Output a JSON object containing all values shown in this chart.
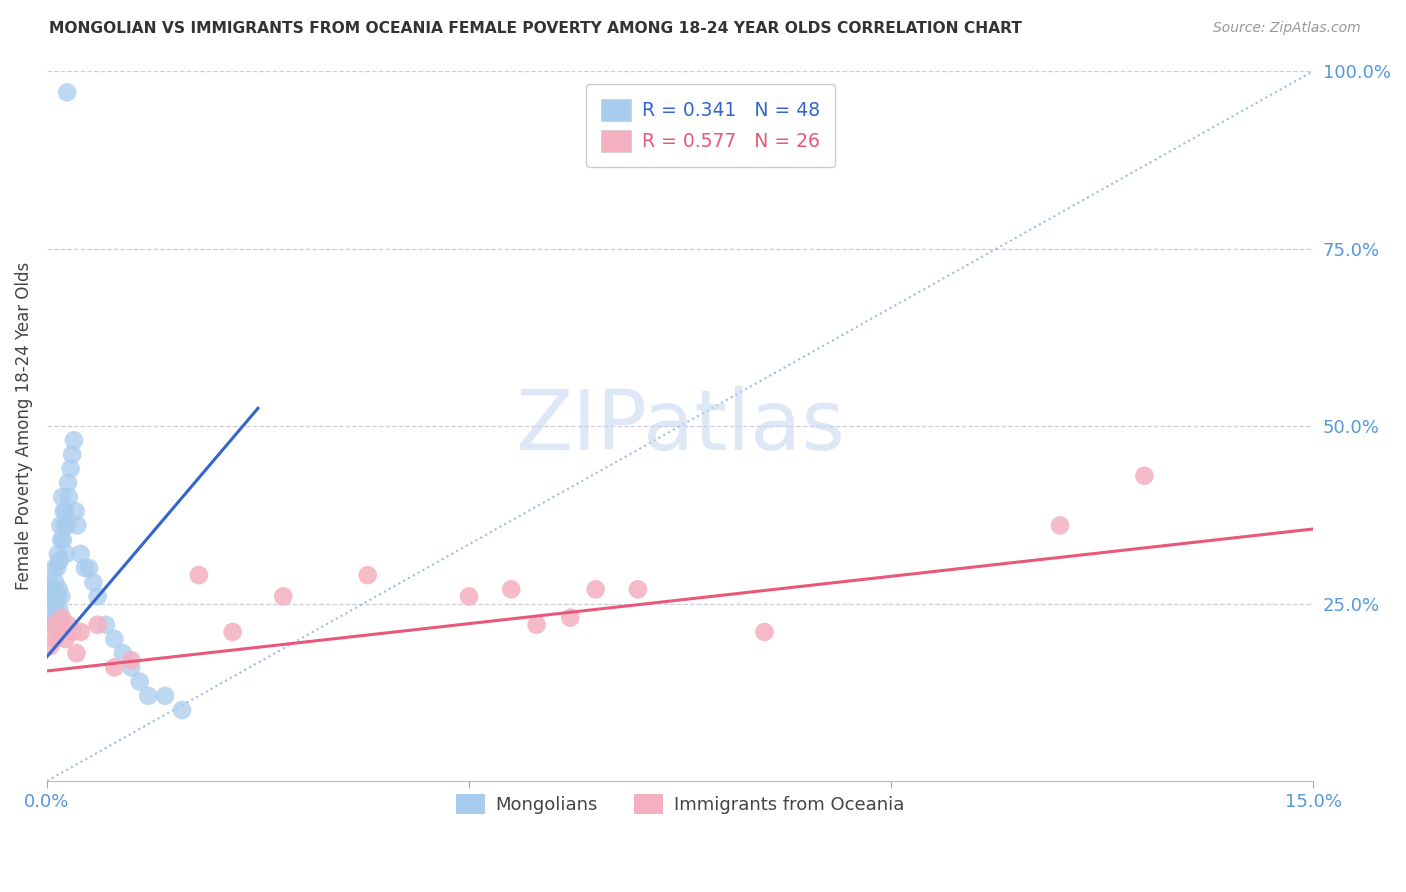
{
  "title": "MONGOLIAN VS IMMIGRANTS FROM OCEANIA FEMALE POVERTY AMONG 18-24 YEAR OLDS CORRELATION CHART",
  "source": "Source: ZipAtlas.com",
  "ylabel": "Female Poverty Among 18-24 Year Olds",
  "color_blue": "#A8CCEE",
  "color_pink": "#F4B0C0",
  "color_trendline_blue": "#3366CC",
  "color_trendline_pink": "#E85878",
  "color_axis": "#5599DD",
  "color_grid": "#CCCCDD",
  "color_title": "#333333",
  "watermark_color": "#C8D8F0",
  "xlim": [
    0.0,
    0.15
  ],
  "ylim": [
    0.0,
    1.0
  ],
  "legend_R1": "0.341",
  "legend_N1": "48",
  "legend_R2": "0.577",
  "legend_N2": "26",
  "legend_label1": "Mongolians",
  "legend_label2": "Immigrants from Oceania",
  "mongolian_x": [
    0.0003,
    0.0004,
    0.0005,
    0.0006,
    0.0007,
    0.0008,
    0.0009,
    0.001,
    0.001,
    0.0011,
    0.0012,
    0.0013,
    0.0013,
    0.0014,
    0.0014,
    0.0015,
    0.0015,
    0.0016,
    0.0017,
    0.0017,
    0.0018,
    0.0019,
    0.002,
    0.0021,
    0.0022,
    0.0023,
    0.0024,
    0.0025,
    0.0026,
    0.0028,
    0.003,
    0.0032,
    0.0034,
    0.0036,
    0.004,
    0.0045,
    0.005,
    0.0055,
    0.006,
    0.007,
    0.008,
    0.009,
    0.01,
    0.011,
    0.012,
    0.014,
    0.016,
    0.0024
  ],
  "mongolian_y": [
    0.28,
    0.22,
    0.24,
    0.27,
    0.26,
    0.25,
    0.3,
    0.28,
    0.22,
    0.24,
    0.3,
    0.32,
    0.26,
    0.27,
    0.22,
    0.31,
    0.24,
    0.36,
    0.34,
    0.26,
    0.4,
    0.34,
    0.38,
    0.36,
    0.38,
    0.32,
    0.36,
    0.42,
    0.4,
    0.44,
    0.46,
    0.48,
    0.38,
    0.36,
    0.32,
    0.3,
    0.3,
    0.28,
    0.26,
    0.22,
    0.2,
    0.18,
    0.16,
    0.14,
    0.12,
    0.12,
    0.1,
    0.97
  ],
  "oceania_x": [
    0.0004,
    0.0007,
    0.001,
    0.0014,
    0.0018,
    0.0022,
    0.0025,
    0.003,
    0.0035,
    0.004,
    0.006,
    0.008,
    0.01,
    0.018,
    0.022,
    0.028,
    0.038,
    0.05,
    0.055,
    0.058,
    0.062,
    0.065,
    0.07,
    0.085,
    0.12,
    0.13
  ],
  "oceania_y": [
    0.19,
    0.22,
    0.2,
    0.21,
    0.23,
    0.2,
    0.22,
    0.21,
    0.18,
    0.21,
    0.22,
    0.16,
    0.17,
    0.29,
    0.21,
    0.26,
    0.29,
    0.26,
    0.27,
    0.22,
    0.23,
    0.27,
    0.27,
    0.21,
    0.36,
    0.43
  ],
  "blue_trendline_x": [
    0.0,
    0.025
  ],
  "blue_trendline_y": [
    0.175,
    0.525
  ],
  "pink_trendline_x": [
    0.0,
    0.15
  ],
  "pink_trendline_y": [
    0.155,
    0.355
  ],
  "ref_line_x": [
    0.0,
    0.15
  ],
  "ref_line_y": [
    0.0,
    1.0
  ]
}
